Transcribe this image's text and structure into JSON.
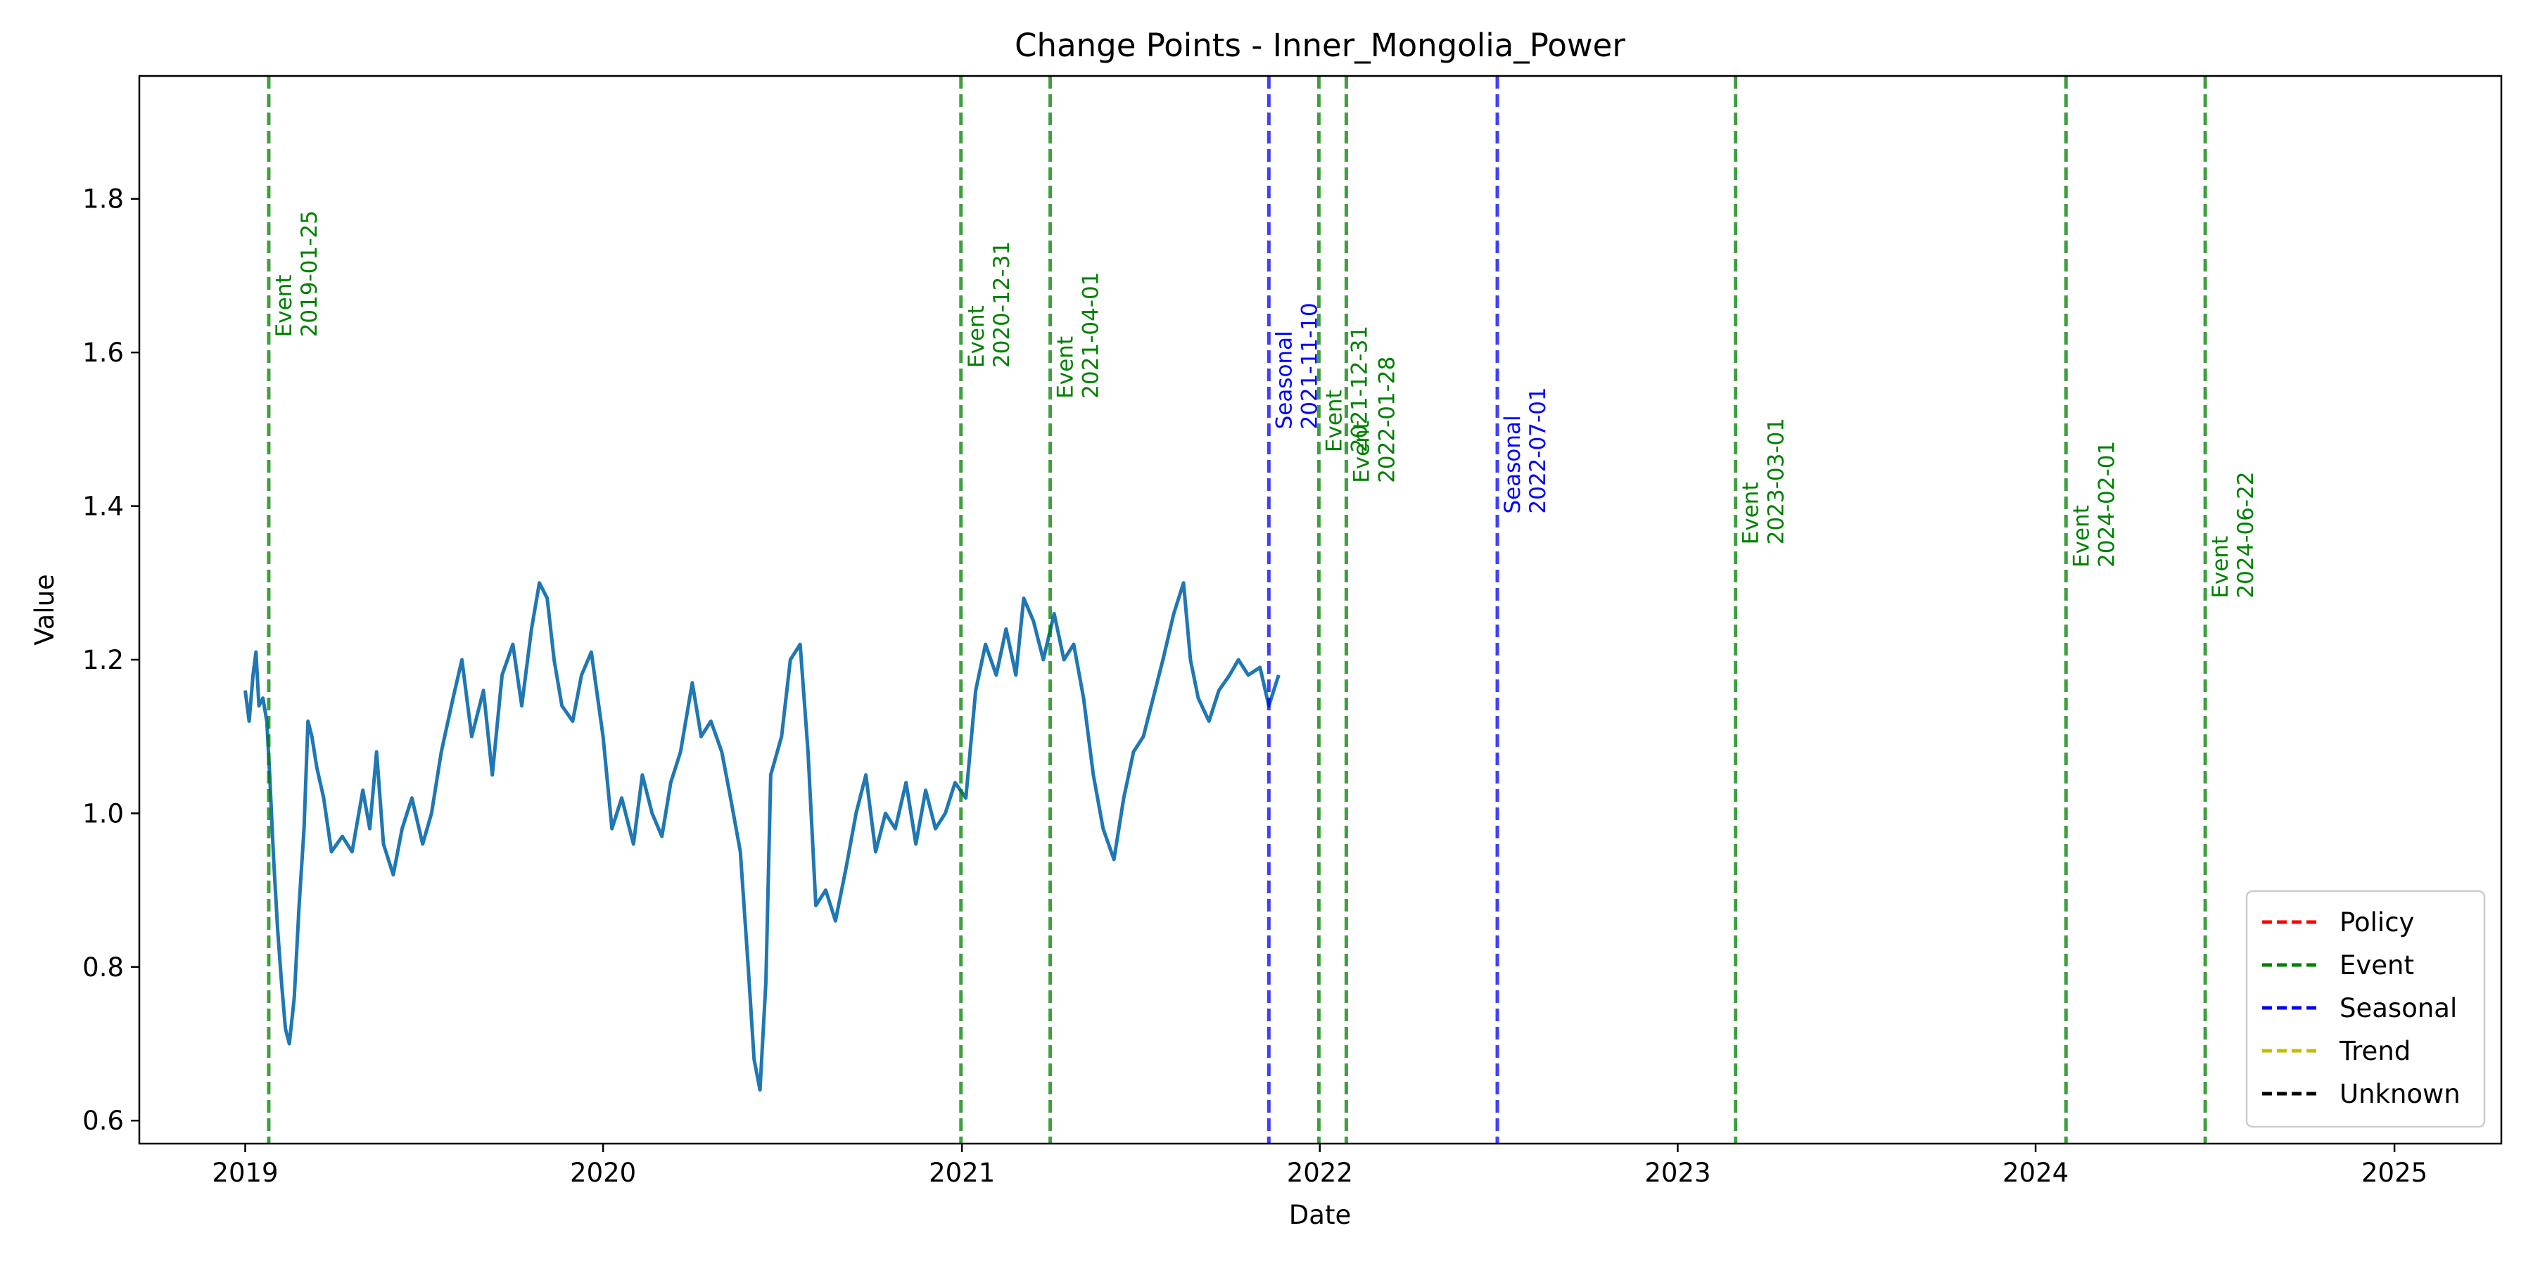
{
  "chart_data": {
    "type": "line",
    "title": "Change Points - Inner_Mongolia_Power",
    "xlabel": "Date",
    "ylabel": "Value",
    "x_range": [
      "2018-09-15",
      "2025-04-20"
    ],
    "ylim": [
      0.57,
      1.96
    ],
    "x_ticks": [
      {
        "date": "2019-01-01",
        "label": "2019"
      },
      {
        "date": "2020-01-01",
        "label": "2020"
      },
      {
        "date": "2021-01-01",
        "label": "2021"
      },
      {
        "date": "2022-01-01",
        "label": "2022"
      },
      {
        "date": "2023-01-01",
        "label": "2023"
      },
      {
        "date": "2024-01-01",
        "label": "2024"
      },
      {
        "date": "2025-01-01",
        "label": "2025"
      }
    ],
    "y_ticks": [
      {
        "value": 0.6,
        "label": "0.6"
      },
      {
        "value": 0.8,
        "label": "0.8"
      },
      {
        "value": 1.0,
        "label": "1.0"
      },
      {
        "value": 1.2,
        "label": "1.2"
      },
      {
        "value": 1.4,
        "label": "1.4"
      },
      {
        "value": 1.6,
        "label": "1.6"
      },
      {
        "value": 1.8,
        "label": "1.8"
      }
    ],
    "grid": false,
    "series": [
      {
        "color": "#1f77b4",
        "points": [
          [
            "2019-01-01",
            1.16
          ],
          [
            "2019-01-05",
            1.12
          ],
          [
            "2019-01-09",
            1.18
          ],
          [
            "2019-01-12",
            1.21
          ],
          [
            "2019-01-15",
            1.14
          ],
          [
            "2019-01-19",
            1.15
          ],
          [
            "2019-01-23",
            1.12
          ],
          [
            "2019-01-26",
            1.05
          ],
          [
            "2019-01-30",
            0.94
          ],
          [
            "2019-02-03",
            0.85
          ],
          [
            "2019-02-07",
            0.78
          ],
          [
            "2019-02-11",
            0.72
          ],
          [
            "2019-02-15",
            0.7
          ],
          [
            "2019-02-20",
            0.76
          ],
          [
            "2019-02-25",
            0.88
          ],
          [
            "2019-03-02",
            0.98
          ],
          [
            "2019-03-06",
            1.12
          ],
          [
            "2019-03-10",
            1.1
          ],
          [
            "2019-03-15",
            1.06
          ],
          [
            "2019-03-22",
            1.02
          ],
          [
            "2019-03-30",
            0.95
          ],
          [
            "2019-04-10",
            0.97
          ],
          [
            "2019-04-20",
            0.95
          ],
          [
            "2019-05-01",
            1.03
          ],
          [
            "2019-05-08",
            0.98
          ],
          [
            "2019-05-15",
            1.08
          ],
          [
            "2019-05-22",
            0.96
          ],
          [
            "2019-06-01",
            0.92
          ],
          [
            "2019-06-10",
            0.98
          ],
          [
            "2019-06-20",
            1.02
          ],
          [
            "2019-07-01",
            0.96
          ],
          [
            "2019-07-10",
            1.0
          ],
          [
            "2019-07-20",
            1.08
          ],
          [
            "2019-08-01",
            1.15
          ],
          [
            "2019-08-10",
            1.2
          ],
          [
            "2019-08-20",
            1.1
          ],
          [
            "2019-09-01",
            1.16
          ],
          [
            "2019-09-10",
            1.05
          ],
          [
            "2019-09-20",
            1.18
          ],
          [
            "2019-10-01",
            1.22
          ],
          [
            "2019-10-10",
            1.14
          ],
          [
            "2019-10-20",
            1.24
          ],
          [
            "2019-10-28",
            1.3
          ],
          [
            "2019-11-05",
            1.28
          ],
          [
            "2019-11-12",
            1.2
          ],
          [
            "2019-11-20",
            1.14
          ],
          [
            "2019-12-01",
            1.12
          ],
          [
            "2019-12-10",
            1.18
          ],
          [
            "2019-12-20",
            1.21
          ],
          [
            "2020-01-01",
            1.1
          ],
          [
            "2020-01-10",
            0.98
          ],
          [
            "2020-01-20",
            1.02
          ],
          [
            "2020-02-01",
            0.96
          ],
          [
            "2020-02-10",
            1.05
          ],
          [
            "2020-02-20",
            1.0
          ],
          [
            "2020-03-01",
            0.97
          ],
          [
            "2020-03-10",
            1.04
          ],
          [
            "2020-03-20",
            1.08
          ],
          [
            "2020-04-01",
            1.17
          ],
          [
            "2020-04-10",
            1.1
          ],
          [
            "2020-04-20",
            1.12
          ],
          [
            "2020-05-01",
            1.08
          ],
          [
            "2020-05-10",
            1.02
          ],
          [
            "2020-05-20",
            0.95
          ],
          [
            "2020-05-28",
            0.8
          ],
          [
            "2020-06-03",
            0.68
          ],
          [
            "2020-06-09",
            0.64
          ],
          [
            "2020-06-15",
            0.78
          ],
          [
            "2020-06-20",
            1.05
          ],
          [
            "2020-07-01",
            1.1
          ],
          [
            "2020-07-10",
            1.2
          ],
          [
            "2020-07-20",
            1.22
          ],
          [
            "2020-07-28",
            1.08
          ],
          [
            "2020-08-05",
            0.88
          ],
          [
            "2020-08-15",
            0.9
          ],
          [
            "2020-08-25",
            0.86
          ],
          [
            "2020-09-05",
            0.93
          ],
          [
            "2020-09-15",
            1.0
          ],
          [
            "2020-09-25",
            1.05
          ],
          [
            "2020-10-05",
            0.95
          ],
          [
            "2020-10-15",
            1.0
          ],
          [
            "2020-10-25",
            0.98
          ],
          [
            "2020-11-05",
            1.04
          ],
          [
            "2020-11-15",
            0.96
          ],
          [
            "2020-11-25",
            1.03
          ],
          [
            "2020-12-05",
            0.98
          ],
          [
            "2020-12-15",
            1.0
          ],
          [
            "2020-12-25",
            1.04
          ],
          [
            "2021-01-05",
            1.02
          ],
          [
            "2021-01-15",
            1.16
          ],
          [
            "2021-01-25",
            1.22
          ],
          [
            "2021-02-05",
            1.18
          ],
          [
            "2021-02-15",
            1.24
          ],
          [
            "2021-02-25",
            1.18
          ],
          [
            "2021-03-05",
            1.28
          ],
          [
            "2021-03-15",
            1.25
          ],
          [
            "2021-03-25",
            1.2
          ],
          [
            "2021-04-05",
            1.26
          ],
          [
            "2021-04-15",
            1.2
          ],
          [
            "2021-04-25",
            1.22
          ],
          [
            "2021-05-05",
            1.15
          ],
          [
            "2021-05-15",
            1.05
          ],
          [
            "2021-05-25",
            0.98
          ],
          [
            "2021-06-05",
            0.94
          ],
          [
            "2021-06-15",
            1.02
          ],
          [
            "2021-06-25",
            1.08
          ],
          [
            "2021-07-05",
            1.1
          ],
          [
            "2021-07-15",
            1.15
          ],
          [
            "2021-07-25",
            1.2
          ],
          [
            "2021-08-05",
            1.26
          ],
          [
            "2021-08-15",
            1.3
          ],
          [
            "2021-08-22",
            1.2
          ],
          [
            "2021-08-30",
            1.15
          ],
          [
            "2021-09-10",
            1.12
          ],
          [
            "2021-09-20",
            1.16
          ],
          [
            "2021-10-01",
            1.18
          ],
          [
            "2021-10-10",
            1.2
          ],
          [
            "2021-10-20",
            1.18
          ],
          [
            "2021-11-01",
            1.19
          ],
          [
            "2021-11-10",
            1.14
          ],
          [
            "2021-11-20",
            1.18
          ]
        ]
      }
    ],
    "change_points": [
      {
        "date": "2019-01-25",
        "category": "Event",
        "color": "#008000",
        "label_kind": "Event",
        "label_date": "2019-01-25",
        "label_value": 1.62
      },
      {
        "date": "2020-12-31",
        "category": "Event",
        "color": "#008000",
        "label_kind": "Event",
        "label_date": "2020-12-31",
        "label_value": 1.58
      },
      {
        "date": "2021-04-01",
        "category": "Event",
        "color": "#008000",
        "label_kind": "Event",
        "label_date": "2021-04-01",
        "label_value": 1.54
      },
      {
        "date": "2021-11-10",
        "category": "Seasonal",
        "color": "#0000ff",
        "label_kind": "Seasonal",
        "label_date": "2021-11-10",
        "label_value": 1.5
      },
      {
        "date": "2021-12-31",
        "category": "Event",
        "color": "#008000",
        "label_kind": "Event",
        "label_date": "2021-12-31",
        "label_value": 1.47
      },
      {
        "date": "2022-01-28",
        "category": "Event",
        "color": "#008000",
        "label_kind": "Event",
        "label_date": "2022-01-28",
        "label_value": 1.43
      },
      {
        "date": "2022-07-01",
        "category": "Seasonal",
        "color": "#0000ff",
        "label_kind": "Seasonal",
        "label_date": "2022-07-01",
        "label_value": 1.39
      },
      {
        "date": "2023-03-01",
        "category": "Event",
        "color": "#008000",
        "label_kind": "Event",
        "label_date": "2023-03-01",
        "label_value": 1.35
      },
      {
        "date": "2024-02-01",
        "category": "Event",
        "color": "#008000",
        "label_kind": "Event",
        "label_date": "2024-02-01",
        "label_value": 1.32
      },
      {
        "date": "2024-06-22",
        "category": "Event",
        "color": "#008000",
        "label_kind": "Event",
        "label_date": "2024-06-22",
        "label_value": 1.28
      }
    ],
    "legend": {
      "placement": "lower-right",
      "entries": [
        {
          "name": "Policy",
          "color": "#ff0000",
          "style": "dashed"
        },
        {
          "name": "Event",
          "color": "#008000",
          "style": "dashed"
        },
        {
          "name": "Seasonal",
          "color": "#0000ff",
          "style": "dashed"
        },
        {
          "name": "Trend",
          "color": "#bfbf00",
          "style": "dashed"
        },
        {
          "name": "Unknown",
          "color": "#000000",
          "style": "dashed"
        }
      ]
    }
  }
}
